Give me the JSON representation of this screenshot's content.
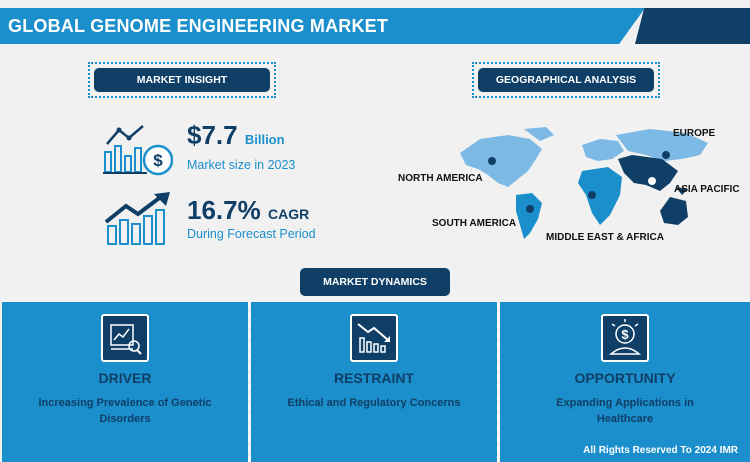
{
  "header": {
    "title": "GLOBAL GENOME ENGINEERING MARKET"
  },
  "insight": {
    "label": "MARKET INSIGHT",
    "size_value": "$7.7",
    "size_unit": "Billion",
    "size_caption": "Market size in 2023",
    "cagr_value": "16.7%",
    "cagr_unit": "CAGR",
    "cagr_caption": "During Forecast Period"
  },
  "geo": {
    "label": "GEOGRAPHICAL ANALYSIS",
    "regions": [
      "NORTH AMERICA",
      "EUROPE",
      "ASIA PACIFIC",
      "SOUTH AMERICA",
      "MIDDLE EAST & AFRICA"
    ]
  },
  "dynamics": {
    "label": "MARKET DYNAMICS",
    "panels": [
      {
        "title": "DRIVER",
        "desc": "Increasing Prevalence of Genetic Disorders",
        "icon": "analysis-icon"
      },
      {
        "title": "RESTRAINT",
        "desc": "Ethical and Regulatory Concerns",
        "icon": "declining-chart-icon"
      },
      {
        "title": "OPPORTUNITY",
        "desc": "Expanding Applications in Healthcare",
        "icon": "money-idea-icon"
      }
    ]
  },
  "footer": {
    "text": "All Rights Reserved To 2024 IMR"
  },
  "colors": {
    "primary": "#1b8fcc",
    "dark": "#0f3f66",
    "background": "#f1f1f1"
  }
}
